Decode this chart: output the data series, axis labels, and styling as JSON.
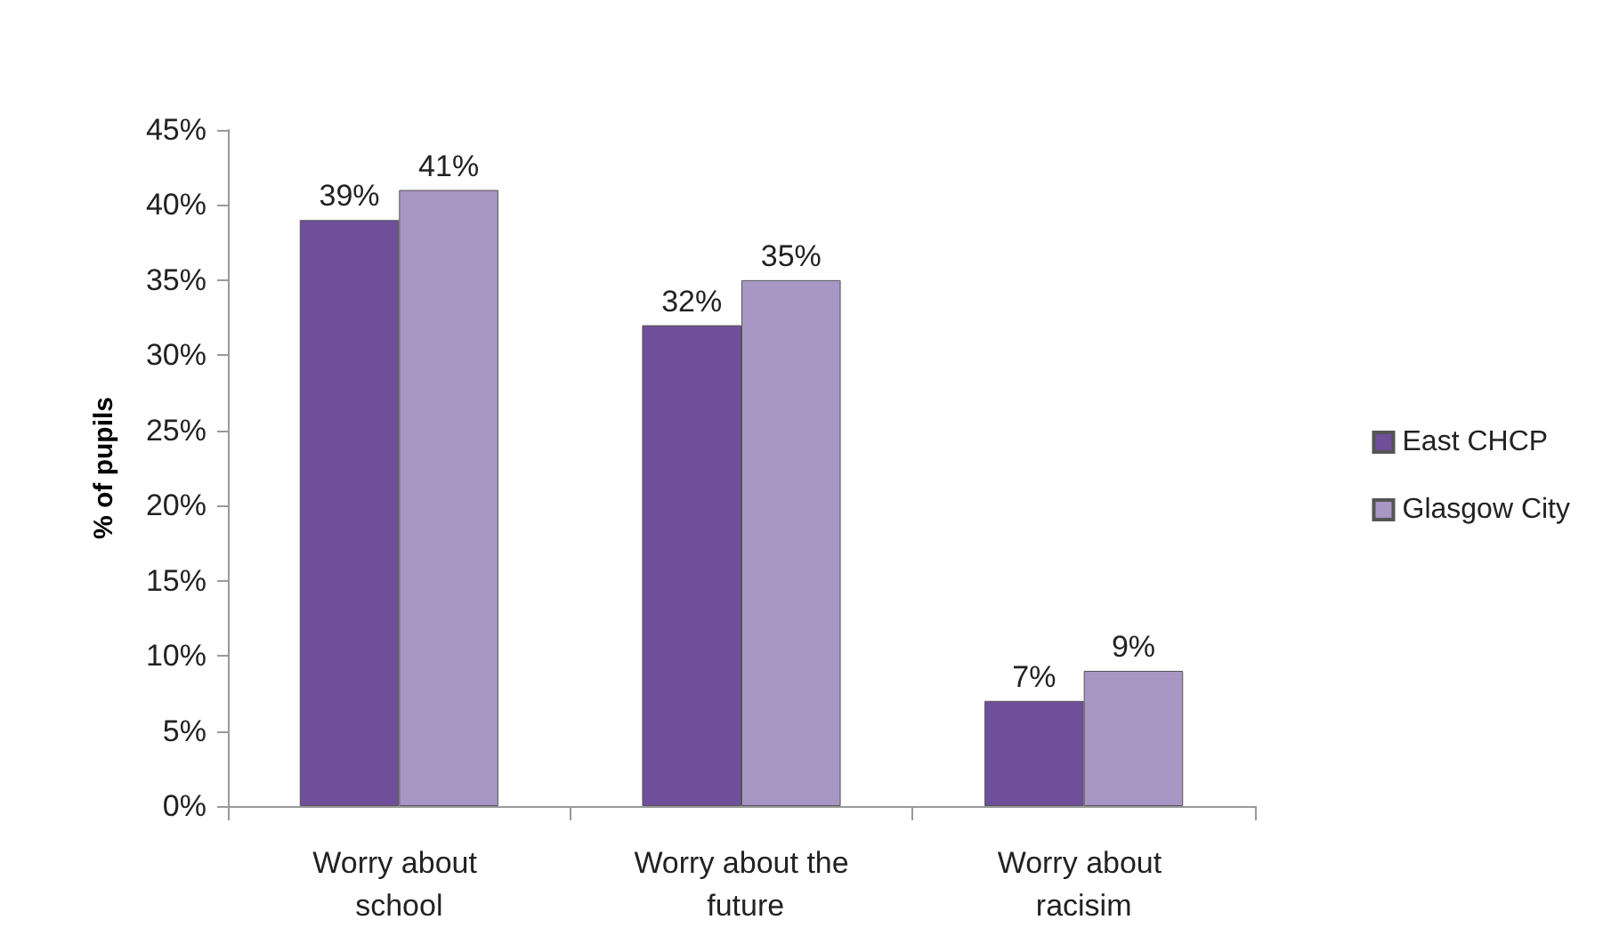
{
  "chart_data": {
    "type": "bar",
    "ylabel": "% of pupils",
    "categories": [
      "Worry about school",
      "Worry about the future",
      "Worry about racisim"
    ],
    "series": [
      {
        "name": "East CHCP",
        "color": "#6f4f99",
        "values": [
          39,
          32,
          7
        ],
        "value_labels": [
          "39%",
          "32%",
          "7%"
        ]
      },
      {
        "name": "Glasgow City",
        "color": "#a896c4",
        "values": [
          41,
          35,
          9
        ],
        "value_labels": [
          "41%",
          "35%",
          "9%"
        ]
      }
    ],
    "ylim": [
      0,
      45
    ],
    "yticks": [
      {
        "value": 0,
        "label": "0%"
      },
      {
        "value": 5,
        "label": "5%"
      },
      {
        "value": 10,
        "label": "10%"
      },
      {
        "value": 15,
        "label": "15%"
      },
      {
        "value": 20,
        "label": "20%"
      },
      {
        "value": 25,
        "label": "25%"
      },
      {
        "value": 30,
        "label": "30%"
      },
      {
        "value": 35,
        "label": "35%"
      },
      {
        "value": 40,
        "label": "40%"
      },
      {
        "value": 45,
        "label": "45%"
      }
    ],
    "grid": false,
    "legend": "right"
  }
}
